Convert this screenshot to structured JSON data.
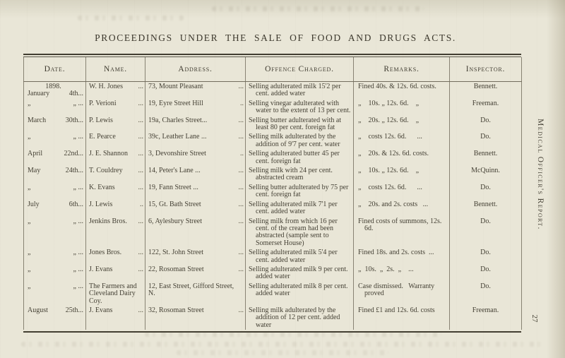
{
  "page": {
    "title": "PROCEEDINGS UNDER THE SALE OF FOOD AND DRUGS ACTS.",
    "side_label": "Medical Officer's Report.",
    "page_number": "27"
  },
  "table": {
    "columns": [
      "Date.",
      "Name.",
      "Address.",
      "Offence Charged.",
      "Remarks.",
      "Inspector."
    ],
    "rows": [
      {
        "year": "1898.",
        "date_month": "January",
        "date_day": "4th...",
        "name": "W. H. Jones",
        "name_leader": "...",
        "address": "73, Mount Pleasant",
        "address_leader": "...",
        "offence": "Selling adulterated milk 15'2 per cent. added water",
        "remarks": "Fined 40s. & 12s. 6d. costs.",
        "inspector": "Bennett."
      },
      {
        "date_month": "„",
        "date_day": "„ ...",
        "name": "P. Verioni",
        "name_leader": "...",
        "address": "19, Eyre Street Hill",
        "address_leader": "..",
        "offence": "Selling vinegar adulterated with water to the extent of 13 per cent.",
        "remarks": "„    10s. „ 12s. 6d.    „",
        "inspector": "Freeman."
      },
      {
        "date_month": "March",
        "date_day": "30th...",
        "name": "P. Lewis",
        "name_leader": "...",
        "address": "19a, Charles Street...",
        "address_leader": "...",
        "offence": "Selling butter adulterated with at least 80 per cent. foreign fat",
        "remarks": "„    20s. „ 12s. 6d.    „",
        "inspector": "Do."
      },
      {
        "date_month": "„",
        "date_day": "„ ...",
        "name": "E. Pearce",
        "name_leader": "...",
        "address": "39c, Leather Lane ...",
        "address_leader": "...",
        "offence": "Selling milk adulterated by the addition of 9'7 per cent. water",
        "remarks": "„    costs 12s. 6d.      ...",
        "inspector": "Do."
      },
      {
        "date_month": "April",
        "date_day": "22nd...",
        "name": "J. E. Shannon",
        "name_leader": "...",
        "address": "3, Devonshire Street",
        "address_leader": "..",
        "offence": "Selling adulterated butter 45 per cent. foreign fat",
        "remarks": "„    20s. & 12s. 6d. costs.",
        "inspector": "Bennett."
      },
      {
        "date_month": "May",
        "date_day": "24th...",
        "name": "T. Couldrey",
        "name_leader": "...",
        "address": "14, Peter's Lane ...",
        "address_leader": "...",
        "offence": "Selling milk with 24 per cent. abstracted cream",
        "remarks": "„    10s. „ 12s. 6d.    „",
        "inspector": "McQuinn."
      },
      {
        "date_month": "„",
        "date_day": "„ ...",
        "name": "K. Evans",
        "name_leader": "...",
        "address": "19, Fann Street ...",
        "address_leader": "...",
        "offence": "Selling butter adulterated by 75 per cent. foreign fat",
        "remarks": "„    costs 12s. 6d.      ...",
        "inspector": "Do."
      },
      {
        "date_month": "July",
        "date_day": "6th...",
        "name": "J. Lewis",
        "name_leader": "..",
        "address": "15, Gt. Bath Street",
        "address_leader": "...",
        "offence": "Selling adulterated milk 7'1 per cent. added water",
        "remarks": "„    20s. and 2s. costs   ...",
        "inspector": "Bennett."
      },
      {
        "date_month": "„",
        "date_day": "„ ...",
        "name": "Jenkins Bros.",
        "name_leader": "...",
        "address": "6, Aylesbury Street",
        "address_leader": "...",
        "offence": "Selling milk from which 16 per cent. of the cream had been abstracted (sample sent to Somerset House)",
        "remarks": "Fined costs of summons, 12s. 6d.",
        "inspector": "Do."
      },
      {
        "date_month": "„",
        "date_day": "„ ...",
        "name": "Jones Bros.",
        "name_leader": "...",
        "address": "122, St. John Street",
        "address_leader": "...",
        "offence": "Selling adulterated milk 5'4 per cent. added water",
        "remarks": "Fined 18s. and 2s. costs  ...",
        "inspector": "Do."
      },
      {
        "date_month": "„",
        "date_day": "„ ...",
        "name": "J. Evans",
        "name_leader": "...",
        "address": "22, Rosoman Street",
        "address_leader": "...",
        "offence": "Selling adulterated milk 9 per cent. added water",
        "remarks": "„  10s.  „  2s.  „    ...",
        "inspector": "Do."
      },
      {
        "date_month": "„",
        "date_day": "„ ...",
        "name": "The Farmers and Cleveland Dairy Coy.",
        "name_leader": "",
        "address": "12, East Street, Gifford Street, N.",
        "address_leader": "",
        "offence": "Selling adulterated milk 8 per cent. added water",
        "remarks": "Case dismissed.   Warranty proved",
        "inspector": "Do."
      },
      {
        "date_month": "August",
        "date_day": "25th...",
        "name": "J. Evans",
        "name_leader": "...",
        "address": "32, Rosoman Street",
        "address_leader": "...",
        "offence": "Selling milk adulterated by the addition of 12 per cent. added water",
        "remarks": "Fined £1 and 12s. 6d. costs",
        "inspector": "Freeman."
      }
    ]
  }
}
